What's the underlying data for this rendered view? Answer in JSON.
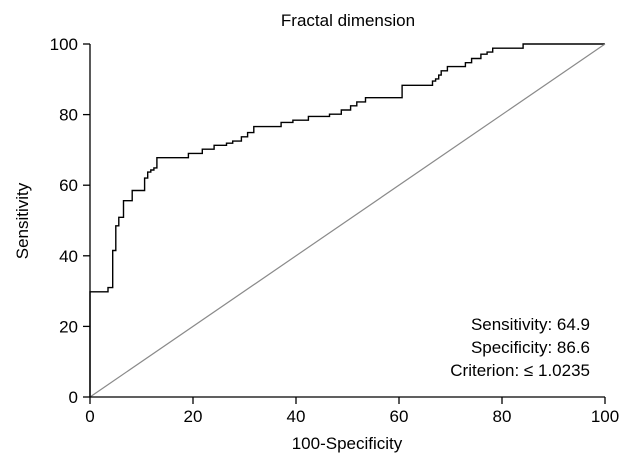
{
  "chart_data": {
    "type": "line",
    "title": "Fractal dimension",
    "xlabel": "100-Specificity",
    "ylabel": "Sensitivity",
    "xlim": [
      0,
      100
    ],
    "ylim": [
      0,
      100
    ],
    "x_ticks": [
      "0",
      "20",
      "40",
      "60",
      "80",
      "100"
    ],
    "y_ticks": [
      "0",
      "20",
      "40",
      "60",
      "80",
      "100"
    ],
    "grid": false,
    "series": [
      {
        "line_color": "#000000",
        "x": [
          0,
          0,
          0.6,
          0.6,
          3.5,
          3.5,
          4.4,
          4.4,
          5.0,
          5.0,
          5.6,
          5.6,
          6.5,
          6.5,
          8.2,
          8.2,
          10.6,
          10.6,
          11.2,
          11.2,
          11.8,
          11.8,
          12.4,
          12.4,
          13.0,
          13.0,
          19.1,
          19.1,
          21.8,
          21.8,
          24.1,
          24.1,
          26.5,
          26.5,
          27.7,
          27.7,
          29.4,
          29.4,
          30.6,
          30.6,
          31.8,
          31.8,
          37.1,
          37.1,
          39.4,
          39.4,
          42.4,
          42.4,
          46.5,
          46.5,
          48.8,
          48.8,
          50.6,
          50.6,
          51.8,
          51.8,
          53.5,
          53.5,
          60.6,
          60.6,
          66.5,
          66.5,
          67.1,
          67.1,
          67.7,
          67.7,
          68.2,
          68.2,
          69.4,
          69.4,
          72.9,
          72.9,
          74.1,
          74.1,
          75.9,
          75.9,
          77.1,
          77.1,
          78.2,
          78.2,
          84.1,
          84.1,
          98.2,
          98.2,
          100
        ],
        "y": [
          0,
          29.8,
          29.8,
          29.8,
          29.8,
          31.0,
          31.0,
          41.5,
          41.5,
          48.5,
          48.5,
          50.9,
          50.9,
          55.6,
          55.6,
          58.5,
          58.5,
          62.0,
          62.0,
          63.7,
          63.7,
          64.3,
          64.3,
          64.9,
          64.9,
          67.8,
          67.8,
          69.0,
          69.0,
          70.2,
          70.2,
          71.3,
          71.3,
          71.9,
          71.9,
          72.5,
          72.5,
          73.7,
          73.7,
          74.9,
          74.9,
          76.6,
          76.6,
          77.8,
          77.8,
          78.4,
          78.4,
          79.5,
          79.5,
          80.1,
          80.1,
          81.3,
          81.3,
          82.5,
          82.5,
          83.6,
          83.6,
          84.8,
          84.8,
          88.3,
          88.3,
          89.5,
          89.5,
          90.1,
          90.1,
          91.2,
          91.2,
          92.4,
          92.4,
          93.6,
          93.6,
          94.7,
          94.7,
          95.9,
          95.9,
          97.1,
          97.1,
          97.7,
          97.7,
          98.8,
          98.8,
          100,
          100,
          100,
          100
        ]
      },
      {
        "line_color": "#8a8a8a",
        "x": [
          0,
          100
        ],
        "y": [
          0,
          100
        ]
      }
    ],
    "annotations": [
      "Sensitivity: 64.9",
      "Specificity: 86.6",
      "Criterion: ≤ 1.0235"
    ]
  }
}
